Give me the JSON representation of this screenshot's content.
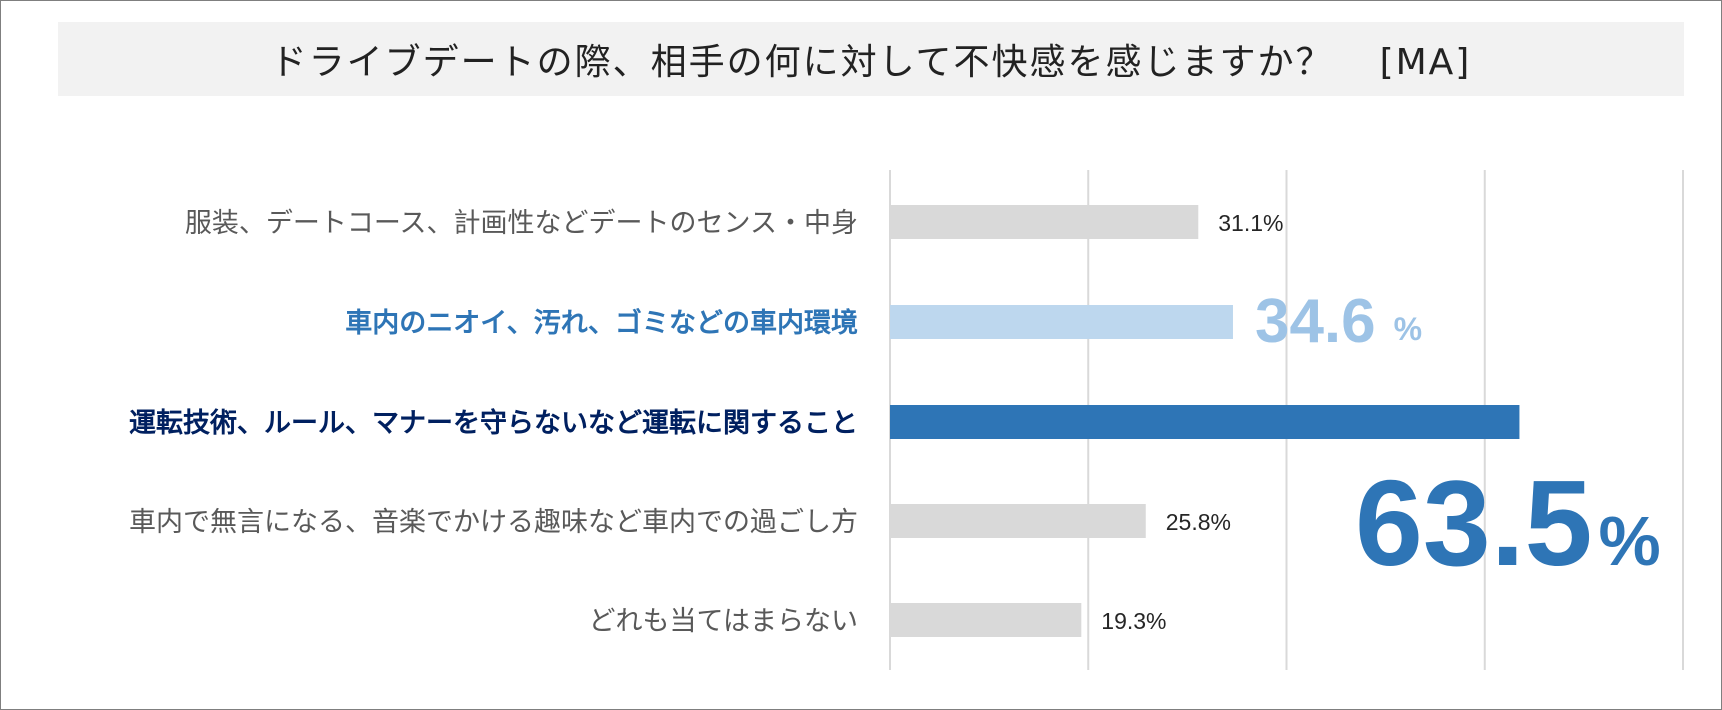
{
  "title": "ドライブデートの際、相手の何に対して不快感を感じますか？",
  "title_tag": "[MA]",
  "chart_data": {
    "type": "bar",
    "orientation": "horizontal",
    "title": "ドライブデートの際、相手の何に対して不快感を感じますか？ [MA]",
    "categories": [
      "服装、デートコース、計画性などデートのセンス・中身",
      "車内のニオイ、汚れ、ゴミなどの車内環境",
      "運転技術、ルール、マナーを守らないなど運転に関すること",
      "車内で無言になる、音楽でかける趣味など車内での過ごし方",
      "どれも当てはまらない"
    ],
    "values": [
      31.1,
      34.6,
      63.5,
      25.8,
      19.3
    ],
    "value_labels": [
      "31.1%",
      "34.6",
      "63.5",
      "25.8%",
      "19.3%"
    ],
    "percent_sign": "%",
    "unit": "%",
    "xlim": [
      0,
      80
    ],
    "grid": true,
    "colors": {
      "default_bar": "#d9d9d9",
      "highlight_light_bar": "#bdd7ee",
      "highlight_dark_bar": "#2e75b6",
      "default_label": "#595959",
      "highlight_light_label": "#2e75b6",
      "highlight_dark_label": "#002060",
      "highlight_light_value": "#9dc3e6",
      "highlight_dark_value": "#2e75b6",
      "gridline": "#d9d9d9"
    },
    "styles": [
      "normal",
      "light",
      "dark",
      "normal",
      "normal"
    ]
  }
}
